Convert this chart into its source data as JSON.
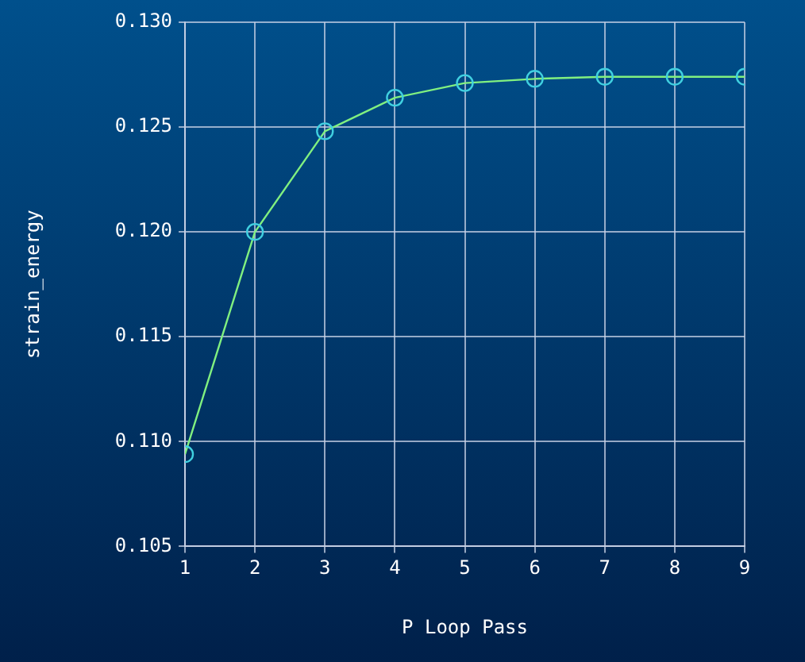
{
  "chart_data": {
    "type": "line",
    "xlabel": "P Loop Pass",
    "ylabel": "strain_energy",
    "x": [
      1,
      2,
      3,
      4,
      5,
      6,
      7,
      8,
      9
    ],
    "series": [
      {
        "color": "#80f080",
        "values": [
          0.1094,
          0.12,
          0.1248,
          0.1264,
          0.1271,
          0.1273,
          0.1274,
          0.1274,
          0.1274
        ]
      }
    ],
    "xlim": [
      1,
      9
    ],
    "xticks": [
      1,
      2,
      3,
      4,
      5,
      6,
      7,
      8,
      9
    ],
    "ylim": [
      0.105,
      0.13
    ],
    "yticks": [
      {
        "value": 0.105,
        "label": "0.105"
      },
      {
        "value": 0.11,
        "label": "0.110"
      },
      {
        "value": 0.115,
        "label": "0.115"
      },
      {
        "value": 0.12,
        "label": "0.120"
      },
      {
        "value": 0.125,
        "label": "0.125"
      },
      {
        "value": 0.13,
        "label": "0.130"
      }
    ],
    "grid": true,
    "marker": "circle",
    "line_style": "solid"
  }
}
